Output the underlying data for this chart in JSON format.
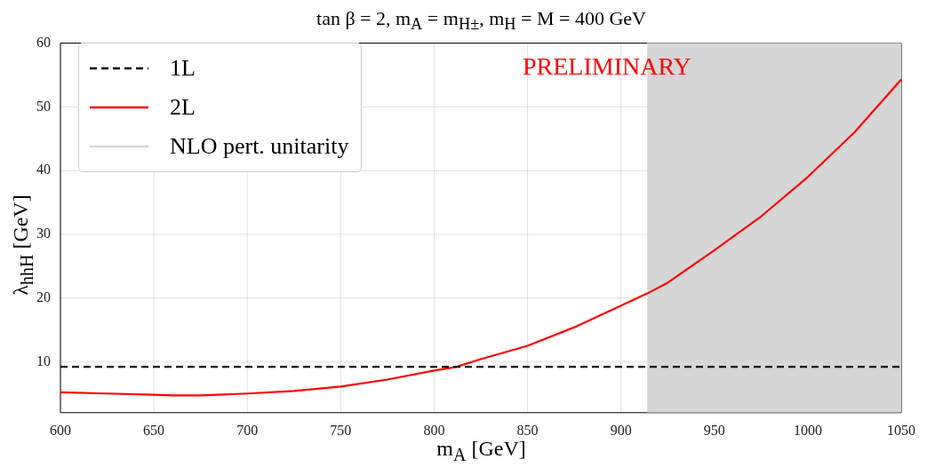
{
  "chart_data": {
    "type": "line",
    "title": "tan β = 2, m$_{A}$ = m$_{H±}$, m$_{H}$ = M = 400 GeV",
    "xlabel": "m$_{A}$ [GeV]",
    "ylabel": "λ$_{hhH}$ [GeV]",
    "annotations": [
      "PRELIMINARY"
    ],
    "series": [
      {
        "name": "1L",
        "color": "#000000",
        "line_style": "dashed",
        "x": [
          600,
          1050
        ],
        "values": [
          9.2,
          9.2
        ]
      },
      {
        "name": "2L",
        "color": "#ff0000",
        "line_style": "solid",
        "x": [
          600,
          625,
          650,
          660,
          675,
          700,
          725,
          750,
          775,
          800,
          812,
          825,
          850,
          875,
          900,
          914,
          925,
          950,
          975,
          1000,
          1025,
          1050
        ],
        "values": [
          5.2,
          5.0,
          4.8,
          4.7,
          4.7,
          5.0,
          5.4,
          6.1,
          7.2,
          8.6,
          9.2,
          10.4,
          12.5,
          15.4,
          18.8,
          20.7,
          22.4,
          27.5,
          32.8,
          39,
          46,
          54.3
        ]
      },
      {
        "name": "NLO pert. unitarity",
        "type": "area",
        "color": "#d6d6d6",
        "x": [
          914,
          1050
        ],
        "values": [
          60,
          60
        ]
      }
    ],
    "xlim": [
      600,
      1050
    ],
    "xticks": [
      600,
      650,
      700,
      750,
      800,
      850,
      900,
      950,
      1000,
      1050
    ],
    "ylim": [
      2,
      60
    ],
    "yticks": [
      10,
      20,
      30,
      40,
      50,
      60
    ],
    "grid": true,
    "legend": "top left",
    "marker": "none"
  }
}
